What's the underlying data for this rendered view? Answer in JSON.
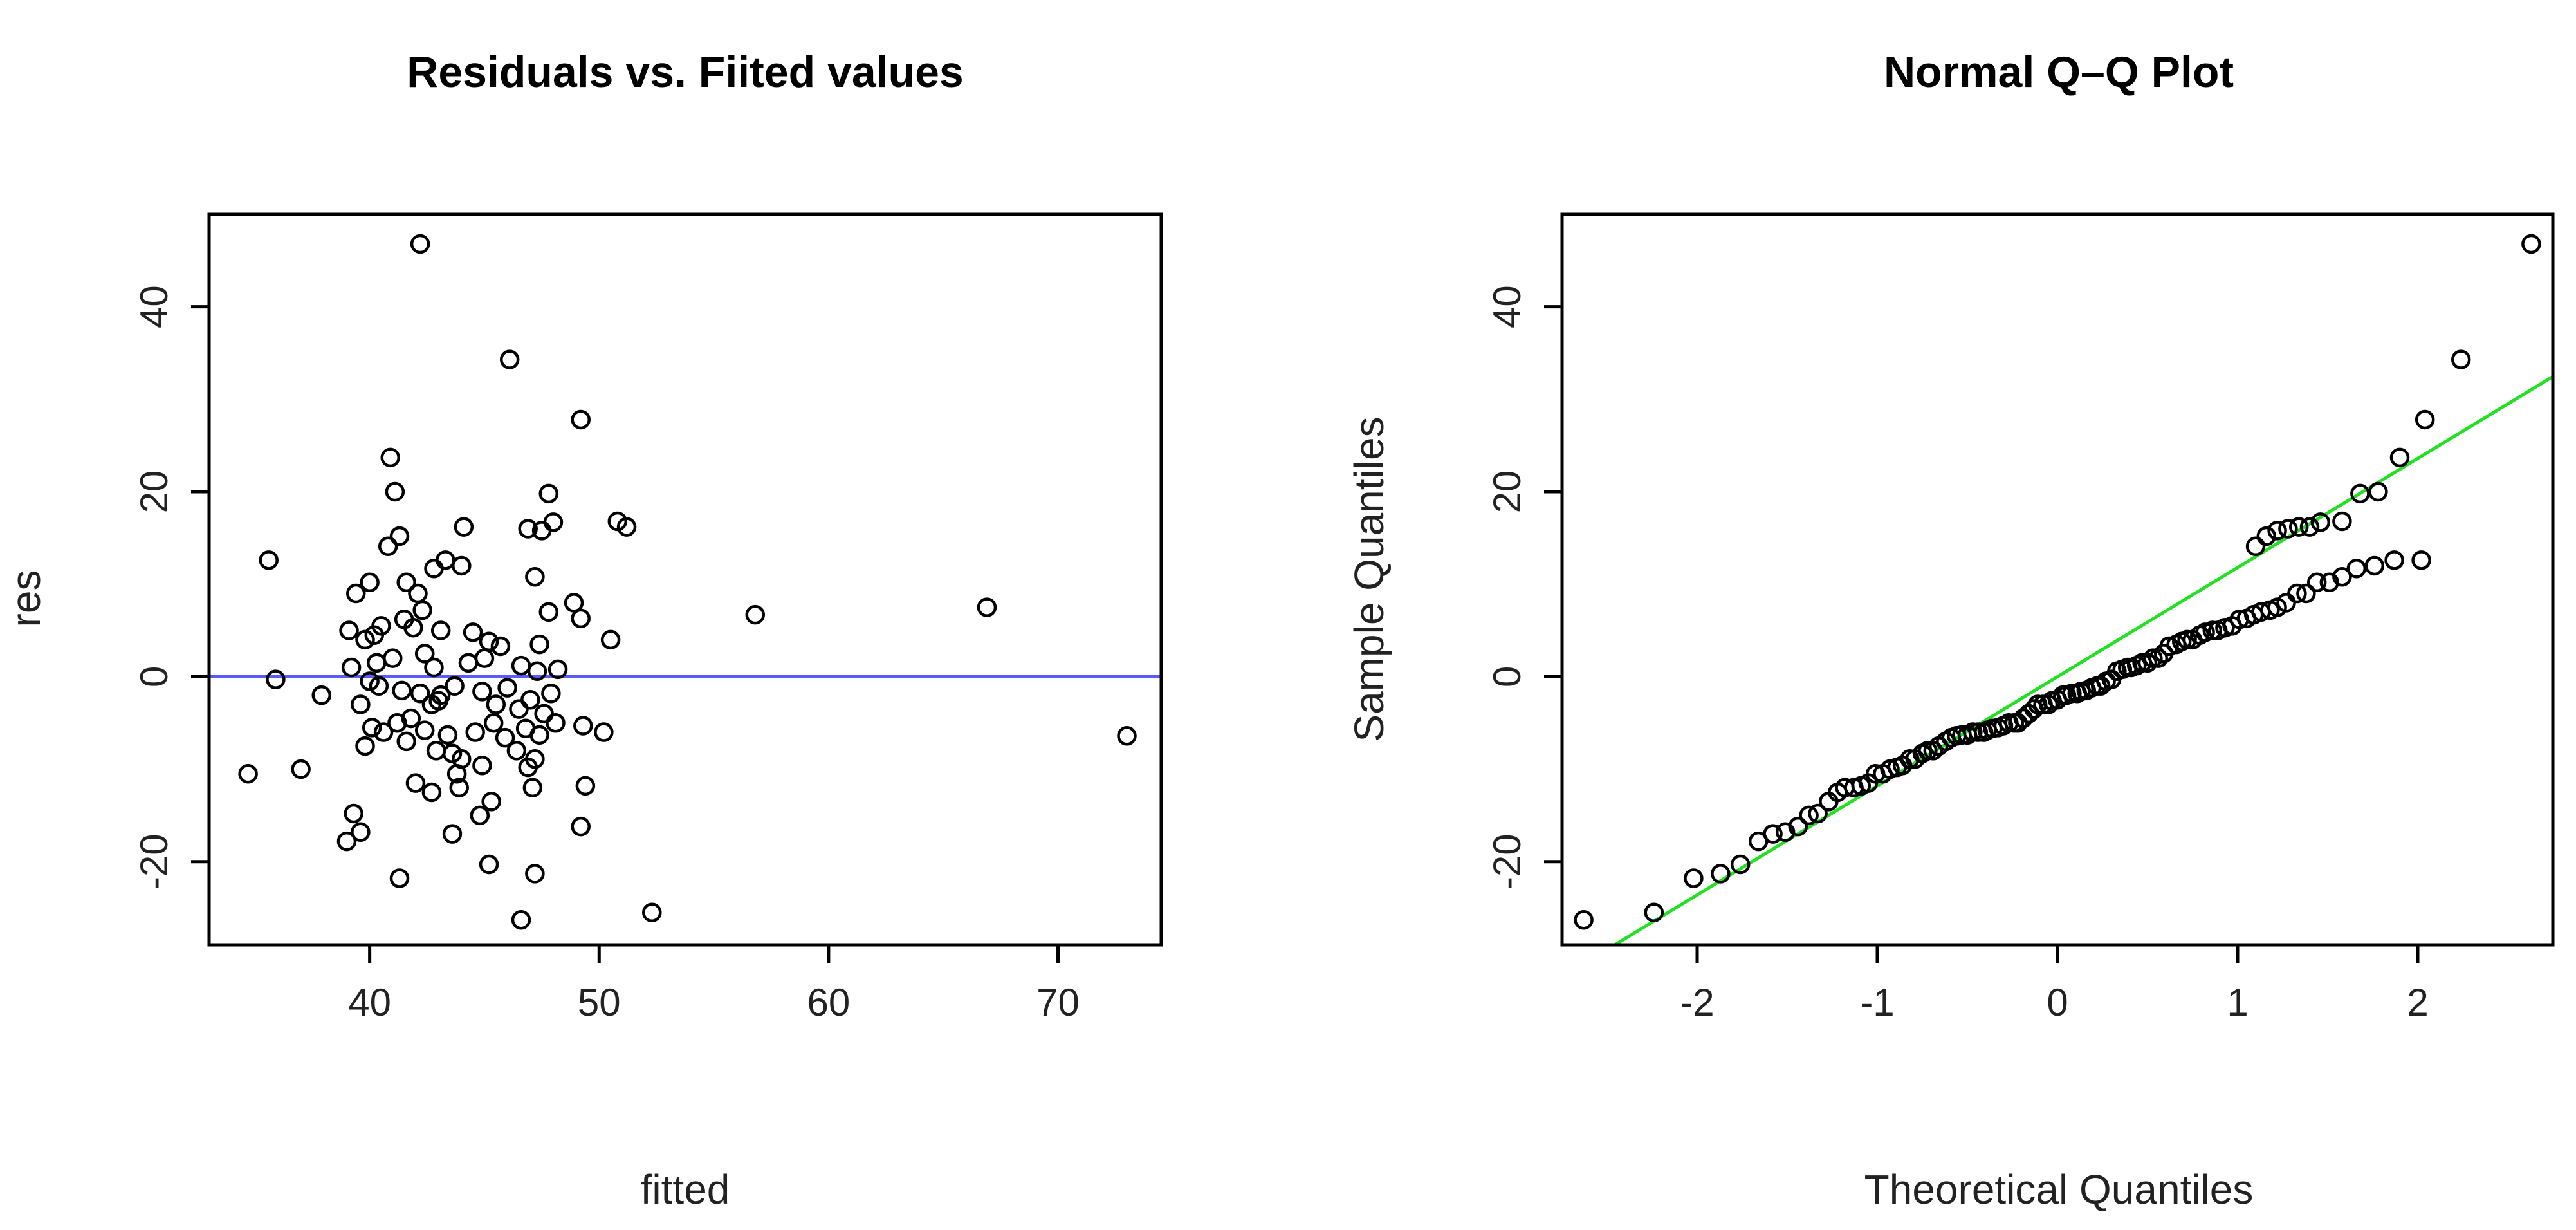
{
  "chart_data": [
    {
      "type": "scatter",
      "title": "Residuals vs. Fiited values",
      "xlabel": "fitted",
      "ylabel": "res",
      "xlim": [
        33,
        74.5
      ],
      "ylim": [
        -29,
        50
      ],
      "xticks": [
        40,
        50,
        60,
        70
      ],
      "yticks": [
        -20,
        0,
        20,
        40
      ],
      "xtick_labels": [
        "40",
        "50",
        "60",
        "70"
      ],
      "ytick_labels": [
        "-20",
        "0",
        "20",
        "40"
      ],
      "reference_line": {
        "type": "horizontal",
        "y": 0,
        "color": "#5a5aff"
      },
      "grid": false,
      "points": [
        [
          42.2,
          46.8
        ],
        [
          46.1,
          34.3
        ],
        [
          49.2,
          27.8
        ],
        [
          40.9,
          23.7
        ],
        [
          41.1,
          20.0
        ],
        [
          47.8,
          19.8
        ],
        [
          48.0,
          16.7
        ],
        [
          47.5,
          15.8
        ],
        [
          46.9,
          16.0
        ],
        [
          50.8,
          16.8
        ],
        [
          51.2,
          16.2
        ],
        [
          44.1,
          16.2
        ],
        [
          41.3,
          15.2
        ],
        [
          35.6,
          12.6
        ],
        [
          42.8,
          11.7
        ],
        [
          43.3,
          12.6
        ],
        [
          44.0,
          12.0
        ],
        [
          40.8,
          14.1
        ],
        [
          41.6,
          10.2
        ],
        [
          42.1,
          9.0
        ],
        [
          39.4,
          9.0
        ],
        [
          40.0,
          10.2
        ],
        [
          47.2,
          10.8
        ],
        [
          48.9,
          8.0
        ],
        [
          49.2,
          6.3
        ],
        [
          47.8,
          7.0
        ],
        [
          42.3,
          7.2
        ],
        [
          41.5,
          6.2
        ],
        [
          41.9,
          5.3
        ],
        [
          39.1,
          5.0
        ],
        [
          40.2,
          4.5
        ],
        [
          39.8,
          4.0
        ],
        [
          40.5,
          5.5
        ],
        [
          43.1,
          5.0
        ],
        [
          44.5,
          4.8
        ],
        [
          45.2,
          3.8
        ],
        [
          45.7,
          3.3
        ],
        [
          47.4,
          3.5
        ],
        [
          50.5,
          4.0
        ],
        [
          56.8,
          6.7
        ],
        [
          66.9,
          7.5
        ],
        [
          39.2,
          1.0
        ],
        [
          40.3,
          1.5
        ],
        [
          41.0,
          2.0
        ],
        [
          42.4,
          2.5
        ],
        [
          42.8,
          1.0
        ],
        [
          44.3,
          1.5
        ],
        [
          45.0,
          2.0
        ],
        [
          46.6,
          1.2
        ],
        [
          47.3,
          0.6
        ],
        [
          48.2,
          0.8
        ],
        [
          35.9,
          -0.3
        ],
        [
          40.0,
          -0.5
        ],
        [
          40.4,
          -1.0
        ],
        [
          41.4,
          -1.5
        ],
        [
          42.2,
          -1.8
        ],
        [
          43.1,
          -2.0
        ],
        [
          43.7,
          -1.0
        ],
        [
          44.9,
          -1.6
        ],
        [
          46.0,
          -1.2
        ],
        [
          47.9,
          -1.8
        ],
        [
          37.9,
          -2.0
        ],
        [
          39.6,
          -3.0
        ],
        [
          42.7,
          -3.0
        ],
        [
          43.0,
          -2.6
        ],
        [
          45.5,
          -3.0
        ],
        [
          46.5,
          -3.5
        ],
        [
          47.0,
          -2.5
        ],
        [
          47.6,
          -4.0
        ],
        [
          40.1,
          -5.5
        ],
        [
          40.6,
          -6.0
        ],
        [
          41.2,
          -5.0
        ],
        [
          41.8,
          -4.5
        ],
        [
          42.4,
          -5.8
        ],
        [
          43.4,
          -6.3
        ],
        [
          44.6,
          -6.0
        ],
        [
          45.4,
          -5.0
        ],
        [
          45.9,
          -6.6
        ],
        [
          46.8,
          -5.6
        ],
        [
          47.4,
          -6.3
        ],
        [
          48.1,
          -5.0
        ],
        [
          49.3,
          -5.3
        ],
        [
          50.2,
          -6.0
        ],
        [
          39.8,
          -7.5
        ],
        [
          41.6,
          -7.0
        ],
        [
          42.9,
          -8.0
        ],
        [
          43.6,
          -8.3
        ],
        [
          44.0,
          -8.9
        ],
        [
          46.4,
          -8.0
        ],
        [
          47.2,
          -8.9
        ],
        [
          37.0,
          -10.0
        ],
        [
          34.7,
          -10.5
        ],
        [
          43.8,
          -10.5
        ],
        [
          44.9,
          -9.6
        ],
        [
          46.9,
          -9.8
        ],
        [
          42.0,
          -11.5
        ],
        [
          42.7,
          -12.5
        ],
        [
          43.9,
          -12.0
        ],
        [
          45.3,
          -13.5
        ],
        [
          47.1,
          -12.0
        ],
        [
          49.4,
          -11.8
        ],
        [
          39.3,
          -14.8
        ],
        [
          44.8,
          -15.0
        ],
        [
          49.2,
          -16.2
        ],
        [
          39.6,
          -16.8
        ],
        [
          39.0,
          -17.8
        ],
        [
          43.6,
          -17.0
        ],
        [
          45.2,
          -20.3
        ],
        [
          47.2,
          -21.3
        ],
        [
          41.3,
          -21.8
        ],
        [
          52.3,
          -25.5
        ],
        [
          46.6,
          -26.3
        ],
        [
          73.0,
          -6.4
        ]
      ]
    },
    {
      "type": "scatter",
      "title": "Normal Q–Q Plot",
      "xlabel": "Theoretical Quantiles",
      "ylabel": "Sample Quantiles",
      "xlim": [
        -2.75,
        2.75
      ],
      "ylim": [
        -29,
        50
      ],
      "xticks": [
        -2,
        -1,
        0,
        1,
        2
      ],
      "yticks": [
        -20,
        0,
        20,
        40
      ],
      "xtick_labels": [
        "-2",
        "-1",
        "0",
        "1",
        "2"
      ],
      "ytick_labels": [
        "-20",
        "0",
        "20",
        "40"
      ],
      "reference_line": {
        "type": "qqline",
        "intercept": 0,
        "slope": 11.8,
        "color": "#22e022"
      },
      "grid": false,
      "points": [
        [
          -2.63,
          -26.3
        ],
        [
          -2.24,
          -25.5
        ],
        [
          -2.02,
          -21.8
        ],
        [
          -1.87,
          -21.3
        ],
        [
          -1.76,
          -20.3
        ],
        [
          -1.66,
          -17.8
        ],
        [
          -1.58,
          -17.0
        ],
        [
          -1.51,
          -16.8
        ],
        [
          -1.44,
          -16.2
        ],
        [
          -1.38,
          -15.0
        ],
        [
          -1.33,
          -14.8
        ],
        [
          -1.27,
          -13.5
        ],
        [
          -1.22,
          -12.5
        ],
        [
          -1.18,
          -12.0
        ],
        [
          -1.13,
          -12.0
        ],
        [
          -1.09,
          -11.8
        ],
        [
          -1.05,
          -11.5
        ],
        [
          -1.01,
          -10.5
        ],
        [
          -0.97,
          -10.5
        ],
        [
          -0.93,
          -10.0
        ],
        [
          -0.89,
          -9.8
        ],
        [
          -0.86,
          -9.6
        ],
        [
          -0.82,
          -8.9
        ],
        [
          -0.79,
          -8.9
        ],
        [
          -0.75,
          -8.3
        ],
        [
          -0.72,
          -8.0
        ],
        [
          -0.69,
          -8.0
        ],
        [
          -0.66,
          -7.5
        ],
        [
          -0.62,
          -7.0
        ],
        [
          -0.59,
          -6.6
        ],
        [
          -0.56,
          -6.4
        ],
        [
          -0.53,
          -6.3
        ],
        [
          -0.5,
          -6.3
        ],
        [
          -0.47,
          -6.0
        ],
        [
          -0.44,
          -6.0
        ],
        [
          -0.41,
          -6.0
        ],
        [
          -0.39,
          -5.8
        ],
        [
          -0.36,
          -5.6
        ],
        [
          -0.33,
          -5.5
        ],
        [
          -0.3,
          -5.3
        ],
        [
          -0.27,
          -5.0
        ],
        [
          -0.24,
          -5.0
        ],
        [
          -0.22,
          -5.0
        ],
        [
          -0.19,
          -4.5
        ],
        [
          -0.16,
          -4.0
        ],
        [
          -0.13,
          -3.5
        ],
        [
          -0.11,
          -3.0
        ],
        [
          -0.08,
          -3.0
        ],
        [
          -0.05,
          -3.0
        ],
        [
          -0.03,
          -2.6
        ],
        [
          0.0,
          -2.5
        ],
        [
          0.03,
          -2.0
        ],
        [
          0.05,
          -2.0
        ],
        [
          0.08,
          -1.8
        ],
        [
          0.11,
          -1.8
        ],
        [
          0.13,
          -1.6
        ],
        [
          0.16,
          -1.5
        ],
        [
          0.19,
          -1.2
        ],
        [
          0.22,
          -1.0
        ],
        [
          0.24,
          -1.0
        ],
        [
          0.27,
          -0.5
        ],
        [
          0.3,
          -0.3
        ],
        [
          0.33,
          0.6
        ],
        [
          0.36,
          0.8
        ],
        [
          0.39,
          1.0
        ],
        [
          0.41,
          1.0
        ],
        [
          0.44,
          1.2
        ],
        [
          0.47,
          1.5
        ],
        [
          0.5,
          1.5
        ],
        [
          0.53,
          2.0
        ],
        [
          0.56,
          2.0
        ],
        [
          0.59,
          2.5
        ],
        [
          0.62,
          3.3
        ],
        [
          0.66,
          3.5
        ],
        [
          0.69,
          3.8
        ],
        [
          0.72,
          4.0
        ],
        [
          0.75,
          4.0
        ],
        [
          0.79,
          4.5
        ],
        [
          0.82,
          4.8
        ],
        [
          0.86,
          5.0
        ],
        [
          0.89,
          5.0
        ],
        [
          0.93,
          5.3
        ],
        [
          0.97,
          5.5
        ],
        [
          1.01,
          6.2
        ],
        [
          1.05,
          6.3
        ],
        [
          1.09,
          6.7
        ],
        [
          1.13,
          7.0
        ],
        [
          1.18,
          7.2
        ],
        [
          1.22,
          7.5
        ],
        [
          1.27,
          8.0
        ],
        [
          1.33,
          9.0
        ],
        [
          1.38,
          9.0
        ],
        [
          1.44,
          10.2
        ],
        [
          1.51,
          10.2
        ],
        [
          1.58,
          10.8
        ],
        [
          1.66,
          11.7
        ],
        [
          1.76,
          12.0
        ],
        [
          1.87,
          12.6
        ],
        [
          2.02,
          12.6
        ],
        [
          1.1,
          14.1
        ],
        [
          1.16,
          15.2
        ],
        [
          1.22,
          15.8
        ],
        [
          1.28,
          16.0
        ],
        [
          1.34,
          16.2
        ],
        [
          1.4,
          16.2
        ],
        [
          1.46,
          16.7
        ],
        [
          1.58,
          16.8
        ],
        [
          1.68,
          19.8
        ],
        [
          1.78,
          20.0
        ],
        [
          1.9,
          23.7
        ],
        [
          2.04,
          27.8
        ],
        [
          2.24,
          34.3
        ],
        [
          2.63,
          46.8
        ]
      ]
    }
  ]
}
